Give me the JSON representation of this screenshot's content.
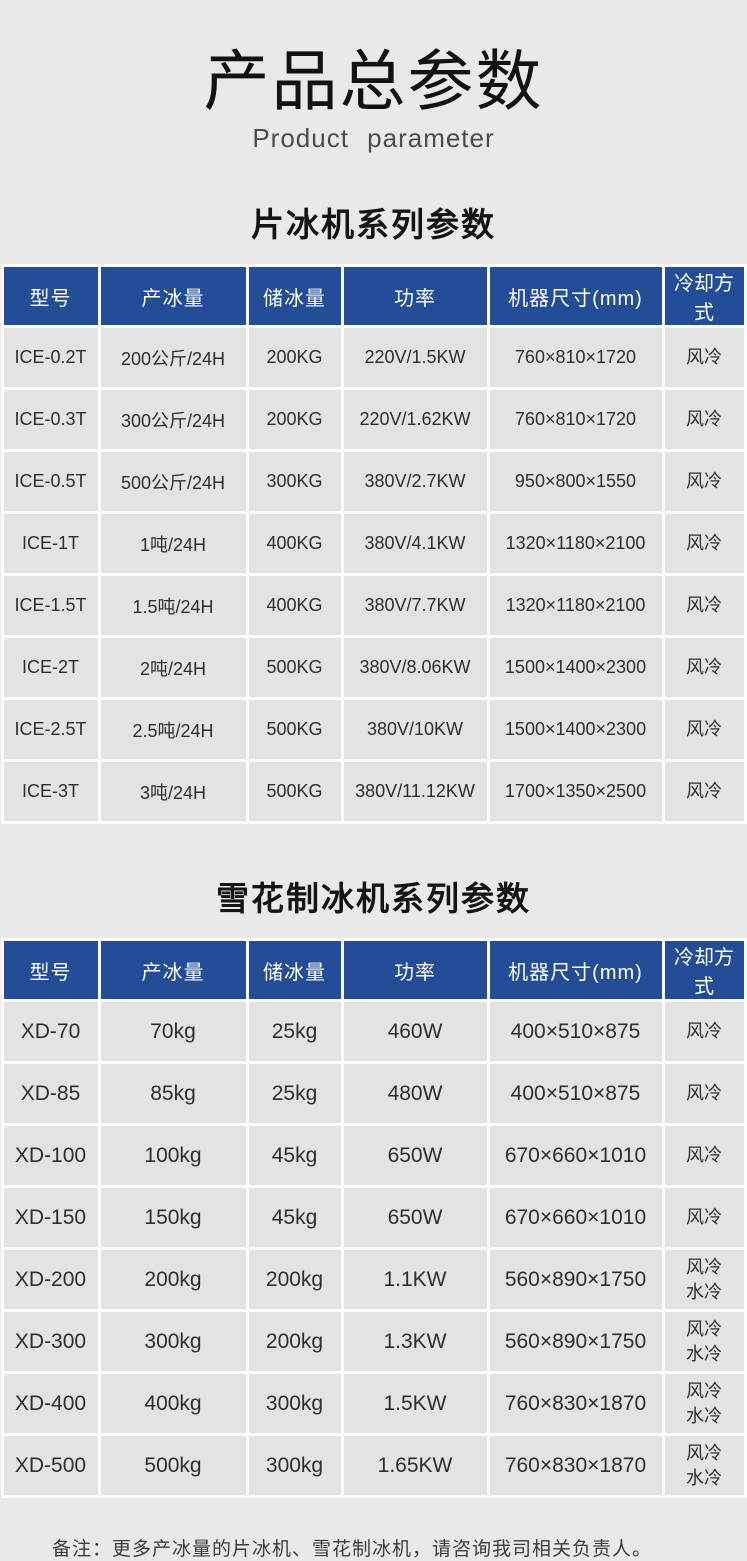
{
  "page": {
    "title": "产品总参数",
    "subtitle": "Product parameter",
    "note": "备注：更多产冰量的片冰机、雪花制冰机，请咨询我司相关负责人。"
  },
  "colors": {
    "header_bg": "#234d96",
    "header_text": "#ffffff",
    "page_bg": "#e9e9e9",
    "cell_bg": "#e3e3e3",
    "separator": "#fcfcfc"
  },
  "tables": [
    {
      "heading": "片冰机系列参数",
      "columns": [
        "型号",
        "产冰量",
        "储冰量",
        "功率",
        "机器尺寸(mm)",
        "冷却方式"
      ],
      "rows": [
        [
          "ICE-0.2T",
          "200公斤/24H",
          "200KG",
          "220V/1.5KW",
          "760×810×1720",
          "风冷"
        ],
        [
          "ICE-0.3T",
          "300公斤/24H",
          "200KG",
          "220V/1.62KW",
          "760×810×1720",
          "风冷"
        ],
        [
          "ICE-0.5T",
          "500公斤/24H",
          "300KG",
          "380V/2.7KW",
          "950×800×1550",
          "风冷"
        ],
        [
          "ICE-1T",
          "1吨/24H",
          "400KG",
          "380V/4.1KW",
          "1320×1180×2100",
          "风冷"
        ],
        [
          "ICE-1.5T",
          "1.5吨/24H",
          "400KG",
          "380V/7.7KW",
          "1320×1180×2100",
          "风冷"
        ],
        [
          "ICE-2T",
          "2吨/24H",
          "500KG",
          "380V/8.06KW",
          "1500×1400×2300",
          "风冷"
        ],
        [
          "ICE-2.5T",
          "2.5吨/24H",
          "500KG",
          "380V/10KW",
          "1500×1400×2300",
          "风冷"
        ],
        [
          "ICE-3T",
          "3吨/24H",
          "500KG",
          "380V/11.12KW",
          "1700×1350×2500",
          "风冷"
        ]
      ]
    },
    {
      "heading": "雪花制冰机系列参数",
      "columns": [
        "型号",
        "产冰量",
        "储冰量",
        "功率",
        "机器尺寸(mm)",
        "冷却方式"
      ],
      "rows": [
        [
          "XD-70",
          "70kg",
          "25kg",
          "460W",
          "400×510×875",
          "风冷"
        ],
        [
          "XD-85",
          "85kg",
          "25kg",
          "480W",
          "400×510×875",
          "风冷"
        ],
        [
          "XD-100",
          "100kg",
          "45kg",
          "650W",
          "670×660×1010",
          "风冷"
        ],
        [
          "XD-150",
          "150kg",
          "45kg",
          "650W",
          "670×660×1010",
          "风冷"
        ],
        [
          "XD-200",
          "200kg",
          "200kg",
          "1.1KW",
          "560×890×1750",
          "风冷\n水冷"
        ],
        [
          "XD-300",
          "300kg",
          "200kg",
          "1.3KW",
          "560×890×1750",
          "风冷\n水冷"
        ],
        [
          "XD-400",
          "400kg",
          "300kg",
          "1.5KW",
          "760×830×1870",
          "风冷\n水冷"
        ],
        [
          "XD-500",
          "500kg",
          "300kg",
          "1.65KW",
          "760×830×1870",
          "风冷\n水冷"
        ]
      ]
    }
  ]
}
